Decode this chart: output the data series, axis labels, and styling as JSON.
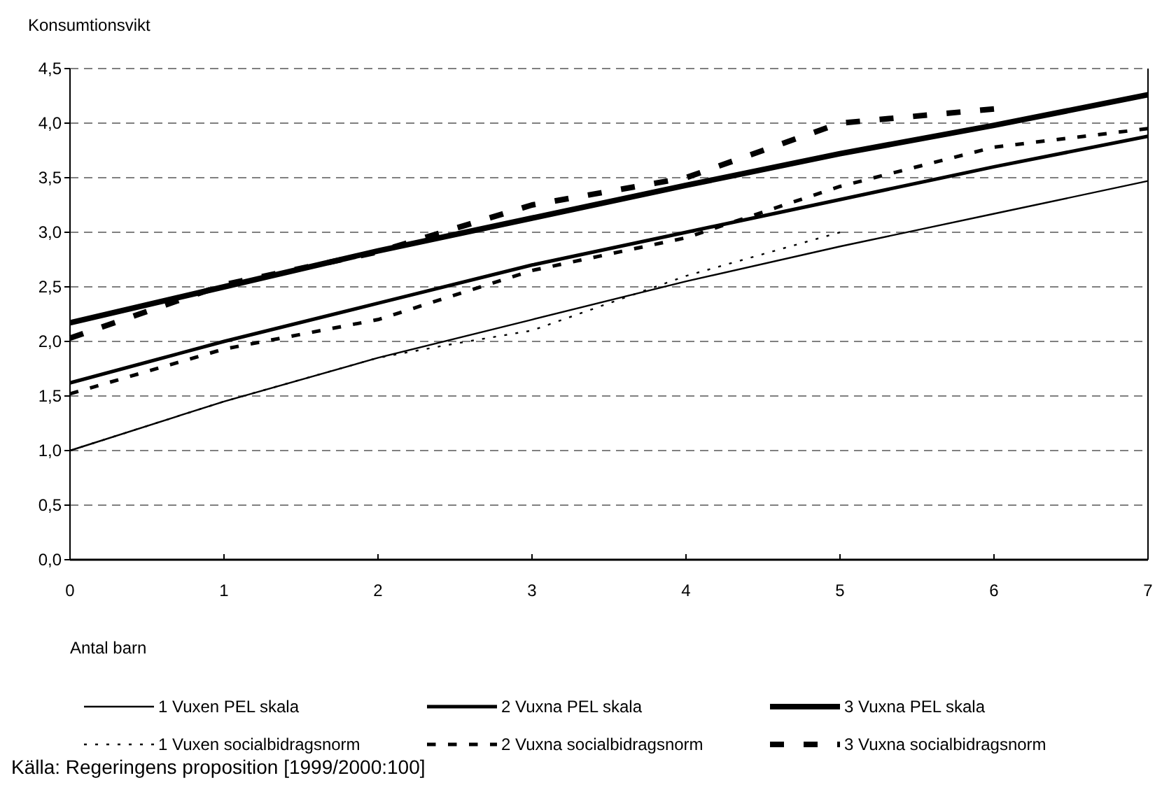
{
  "chart_data": {
    "type": "line",
    "ylabel": "Konsumtionsvikt",
    "xlabel": "Antal barn",
    "annotations": [
      "Källa: Regeringens proposition [1999/2000:100]"
    ],
    "xlim": [
      0,
      7
    ],
    "xticks": [
      0,
      1,
      2,
      3,
      4,
      5,
      6,
      7
    ],
    "ylim": [
      0,
      4.5
    ],
    "yticks": [
      {
        "value": 0,
        "label": "0,0"
      },
      {
        "value": 0.5,
        "label": "0,5"
      },
      {
        "value": 1,
        "label": "1,0"
      },
      {
        "value": 1.5,
        "label": "1,5"
      },
      {
        "value": 2,
        "label": "2,0"
      },
      {
        "value": 2.5,
        "label": "2,5"
      },
      {
        "value": 3,
        "label": "3,0"
      },
      {
        "value": 3.5,
        "label": "3,5"
      },
      {
        "value": 4,
        "label": "4,0"
      },
      {
        "value": 4.5,
        "label": "4,5"
      }
    ],
    "grid": "y",
    "legend": "bottom",
    "marker": "none",
    "series": [
      {
        "name": "1 Vuxen PEL skala",
        "color": "#000000",
        "line_style": "solid",
        "x": [
          0,
          1,
          2,
          3,
          4,
          5,
          6,
          7
        ],
        "values": [
          1.0,
          1.45,
          1.85,
          2.2,
          2.55,
          2.87,
          3.17,
          3.47
        ]
      },
      {
        "name": "2 Vuxna PEL skala",
        "color": "#000000",
        "line_style": "solid",
        "x": [
          0,
          1,
          2,
          3,
          4,
          5,
          6,
          7
        ],
        "values": [
          1.62,
          2.0,
          2.35,
          2.7,
          3.0,
          3.3,
          3.6,
          3.88
        ]
      },
      {
        "name": "3 Vuxna PEL skala",
        "color": "#000000",
        "line_style": "solid",
        "x": [
          0,
          1,
          2,
          3,
          4,
          5,
          6,
          7
        ],
        "values": [
          2.17,
          2.5,
          2.83,
          3.13,
          3.43,
          3.72,
          3.98,
          4.26
        ]
      },
      {
        "name": "1 Vuxen socialbidragsnorm",
        "color": "#000000",
        "line_style": "dotted",
        "x": [
          0,
          1,
          2,
          2.5,
          3,
          4,
          5
        ],
        "values": [
          1.0,
          1.45,
          1.85,
          1.98,
          2.1,
          2.6,
          3.0
        ]
      },
      {
        "name": "2 Vuxna socialbidragsnorm",
        "color": "#000000",
        "line_style": "dashed",
        "x": [
          0,
          1,
          2,
          3,
          4,
          5,
          6,
          7
        ],
        "values": [
          1.52,
          1.93,
          2.2,
          2.65,
          2.95,
          3.42,
          3.78,
          3.95
        ]
      },
      {
        "name": "3 Vuxna socialbidragsnorm",
        "color": "#000000",
        "line_style": "dashed",
        "x": [
          0,
          1,
          2,
          3,
          4,
          4.5,
          5,
          6
        ],
        "values": [
          2.03,
          2.52,
          2.82,
          3.25,
          3.5,
          3.75,
          4.0,
          4.13
        ]
      }
    ]
  }
}
